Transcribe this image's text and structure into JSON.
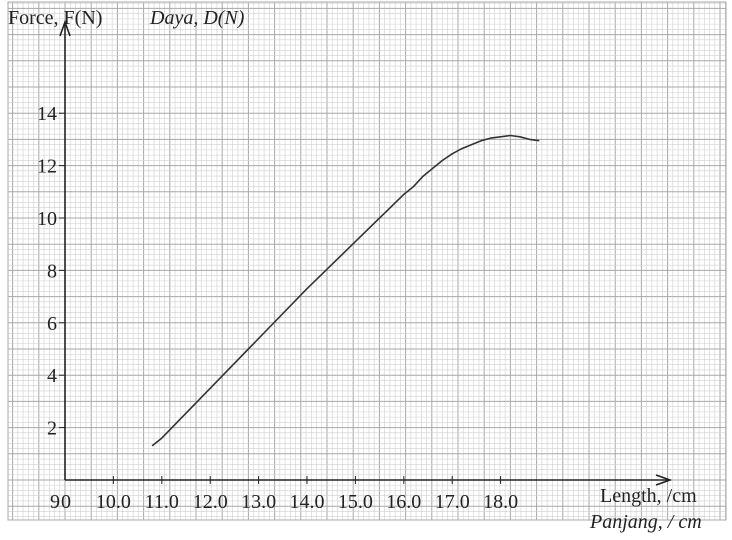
{
  "chart_data": {
    "type": "line",
    "title": "",
    "ylabel": "Force, F(N)",
    "ylabel_alt": "Daya, D(N)",
    "xlabel": "Length, /cm",
    "xlabel_alt": "Panjang, / cm",
    "origin_labels": [
      "9",
      "0"
    ],
    "x_tick_labels": [
      "10.0",
      "11.0",
      "12.0",
      "13.0",
      "14.0",
      "15.0",
      "16.0",
      "17.0",
      "18.0"
    ],
    "y_tick_labels": [
      "2",
      "4",
      "6",
      "8",
      "10",
      "12",
      "14"
    ],
    "xlim": [
      9.0,
      19.0
    ],
    "ylim": [
      0,
      15
    ],
    "grid": true,
    "series": [
      {
        "x": [
          10.8,
          11.0,
          12.0,
          13.0,
          14.0,
          15.0,
          16.0,
          16.2,
          16.4,
          16.6,
          16.8,
          17.0,
          17.2,
          17.4,
          17.6,
          17.8,
          18.0,
          18.2,
          18.4,
          18.6,
          18.8
        ],
        "y": [
          1.3,
          1.6,
          3.5,
          5.4,
          7.3,
          9.1,
          10.9,
          11.2,
          11.6,
          11.9,
          12.2,
          12.45,
          12.65,
          12.8,
          12.95,
          13.05,
          13.1,
          13.15,
          13.1,
          13.0,
          12.95
        ]
      }
    ]
  },
  "colors": {
    "grid_minor": "#d0d0d0",
    "grid_major": "#a8a8a8",
    "axis": "#222222",
    "line": "#333333"
  }
}
